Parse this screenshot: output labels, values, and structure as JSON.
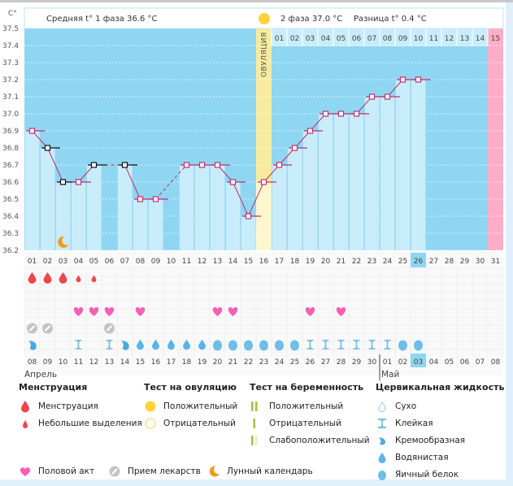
{
  "header": {
    "axis_unit": "C°",
    "phase1_avg": "Средняя t° 1 фаза 36.6 °C",
    "phase2_avg": "2 фаза 37.0 °C",
    "difference": "Разница t° 0.4 °C",
    "ovulation_label": "ОВУЛЯЦИЯ"
  },
  "colors": {
    "plot_bg": "#8fd6f2",
    "bar_fill": "#c9ecfb",
    "ovulation_col": "#f7ec9e",
    "period_col": "#ffadc6",
    "line": "#c0306e",
    "marker_border": "#c0306e",
    "excluded_marker": "#111111",
    "today": "#8fd6f2"
  },
  "chart_data": {
    "type": "line",
    "title": "",
    "xlabel": "",
    "ylabel": "C°",
    "ylim": [
      36.2,
      37.5
    ],
    "yticks": [
      37.5,
      37.4,
      37.3,
      37.2,
      37.1,
      37.0,
      36.9,
      36.8,
      36.7,
      36.6,
      36.5,
      36.4,
      36.3,
      36.2
    ],
    "cycle_days": [
      "01",
      "02",
      "03",
      "04",
      "05",
      "06",
      "07",
      "08",
      "09",
      "10",
      "11",
      "12",
      "13",
      "14",
      "15",
      "16",
      "17",
      "18",
      "19",
      "20",
      "21",
      "22",
      "23",
      "24",
      "25",
      "26",
      "27",
      "28",
      "29",
      "30",
      "31"
    ],
    "phase2_day_labels": [
      "01",
      "02",
      "03",
      "04",
      "05",
      "06",
      "07",
      "08",
      "09",
      "10",
      "11",
      "12",
      "13",
      "14",
      "15"
    ],
    "phase2_start_day": 17,
    "ovulation_day": 16,
    "next_period_day": 31,
    "today_day": 26,
    "series": [
      {
        "name": "Базальная температура",
        "values": [
          36.9,
          36.8,
          36.6,
          36.6,
          36.7,
          null,
          36.7,
          36.5,
          36.5,
          null,
          36.7,
          36.7,
          36.7,
          36.6,
          36.4,
          36.6,
          36.7,
          36.8,
          36.9,
          37.0,
          37.0,
          37.0,
          37.1,
          37.1,
          37.2,
          37.2,
          null,
          null,
          null,
          null,
          null
        ],
        "excluded": [
          false,
          true,
          true,
          false,
          true,
          false,
          true,
          false,
          false,
          false,
          false,
          false,
          false,
          false,
          false,
          false,
          false,
          false,
          false,
          false,
          false,
          false,
          false,
          false,
          false,
          false,
          false,
          false,
          false,
          false,
          false
        ]
      }
    ],
    "moon_days": [
      3
    ],
    "menstruation": {
      "heavy": [
        1,
        2,
        3
      ],
      "light": [
        4,
        5
      ]
    },
    "intercourse_days": [
      4,
      5,
      6,
      8,
      13,
      14,
      19,
      21
    ],
    "medication_days": [
      1,
      2,
      6
    ],
    "cervical_fluid": {
      "1": "creamy",
      "4": "sticky",
      "6": "sticky",
      "7": "creamy",
      "8": "watery",
      "9": "watery",
      "10": "watery",
      "11": "watery",
      "12": "watery",
      "13": "eggwhite",
      "14": "eggwhite",
      "15": "eggwhite",
      "16": "eggwhite",
      "17": "eggwhite",
      "18": "eggwhite",
      "19": "sticky",
      "20": "sticky",
      "21": "sticky",
      "22": "sticky",
      "23": "sticky",
      "24": "sticky",
      "25": "eggwhite",
      "26": "eggwhite"
    },
    "dates": [
      "08",
      "09",
      "10",
      "11",
      "12",
      "13",
      "14",
      "15",
      "16",
      "17",
      "18",
      "19",
      "20",
      "21",
      "22",
      "23",
      "24",
      "25",
      "26",
      "27",
      "28",
      "29",
      "30",
      "01",
      "02",
      "03",
      "04",
      "05",
      "06",
      "07",
      "08"
    ],
    "weekend_dates_idx": [
      3,
      4,
      10,
      11,
      17,
      18,
      24
    ],
    "month_labels": [
      {
        "label": "Апрель",
        "start_idx": 0
      },
      {
        "label": "Май",
        "start_idx": 23
      }
    ]
  },
  "legend": {
    "menstruation": {
      "title": "Менструация",
      "items": [
        "Менструация",
        "Небольшие выделения"
      ]
    },
    "ovulation_test": {
      "title": "Тест на овуляцию",
      "items": [
        "Положительный",
        "Отрицательный"
      ]
    },
    "pregnancy_test": {
      "title": "Тест на беременность",
      "items": [
        "Положительный",
        "Отрицательный",
        "Слабоположительный"
      ]
    },
    "cervical_fluid": {
      "title": "Цервикальная жидкость",
      "items": [
        "Сухо",
        "Клейкая",
        "Кремообразная",
        "Водянистая",
        "Яичный белок"
      ]
    },
    "other": [
      "Половой акт",
      "Прием лекарств",
      "Лунный календарь"
    ]
  }
}
